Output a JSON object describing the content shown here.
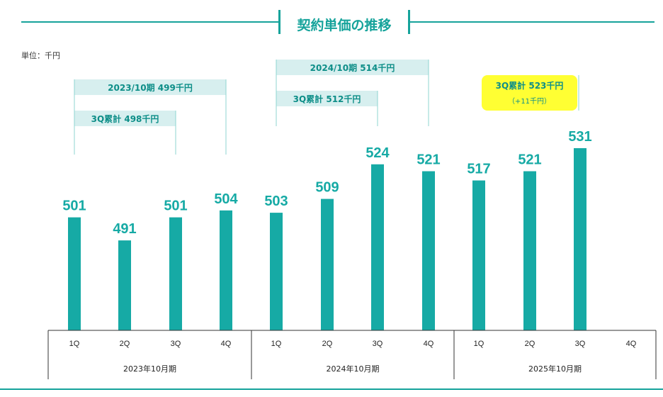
{
  "title": "契約単価の推移",
  "unit_label": "単位：千円",
  "colors": {
    "bar": "#16aaa5",
    "value": "#16aaa5",
    "annotation_bg": "#d7efef",
    "annotation_text": "#0d8e88",
    "highlight": "#ffff33",
    "axis": "#333333"
  },
  "chart_data": {
    "type": "bar",
    "categories": [
      "1Q",
      "2Q",
      "3Q",
      "4Q",
      "1Q",
      "2Q",
      "3Q",
      "4Q",
      "1Q",
      "2Q",
      "3Q",
      "4Q"
    ],
    "groups": [
      {
        "label": "2023年10月期",
        "quarters": [
          "1Q",
          "2Q",
          "3Q",
          "4Q"
        ]
      },
      {
        "label": "2024年10月期",
        "quarters": [
          "1Q",
          "2Q",
          "3Q",
          "4Q"
        ]
      },
      {
        "label": "2025年10月期",
        "quarters": [
          "1Q",
          "2Q",
          "3Q",
          "4Q"
        ]
      }
    ],
    "values": [
      501,
      491,
      501,
      504,
      503,
      509,
      524,
      521,
      517,
      521,
      531,
      null
    ],
    "value_labels": [
      "501",
      "491",
      "501",
      "504",
      "503",
      "509",
      "524",
      "521",
      "517",
      "521",
      "531",
      ""
    ],
    "annotations": [
      {
        "text": "2023/10期 499千円",
        "from_index": 0,
        "to_index": 3,
        "level": "upper"
      },
      {
        "text": "3Q累計 498千円",
        "from_index": 0,
        "to_index": 2,
        "level": "lower"
      },
      {
        "text": "2024/10期 514千円",
        "from_index": 4,
        "to_index": 7,
        "level": "upper"
      },
      {
        "text": "3Q累計 512千円",
        "from_index": 4,
        "to_index": 6,
        "level": "lower"
      },
      {
        "text": "3Q累計 523千円",
        "subtext": "（+11千円）",
        "from_index": 8,
        "to_index": 10,
        "level": "upper",
        "highlight": true
      }
    ]
  }
}
